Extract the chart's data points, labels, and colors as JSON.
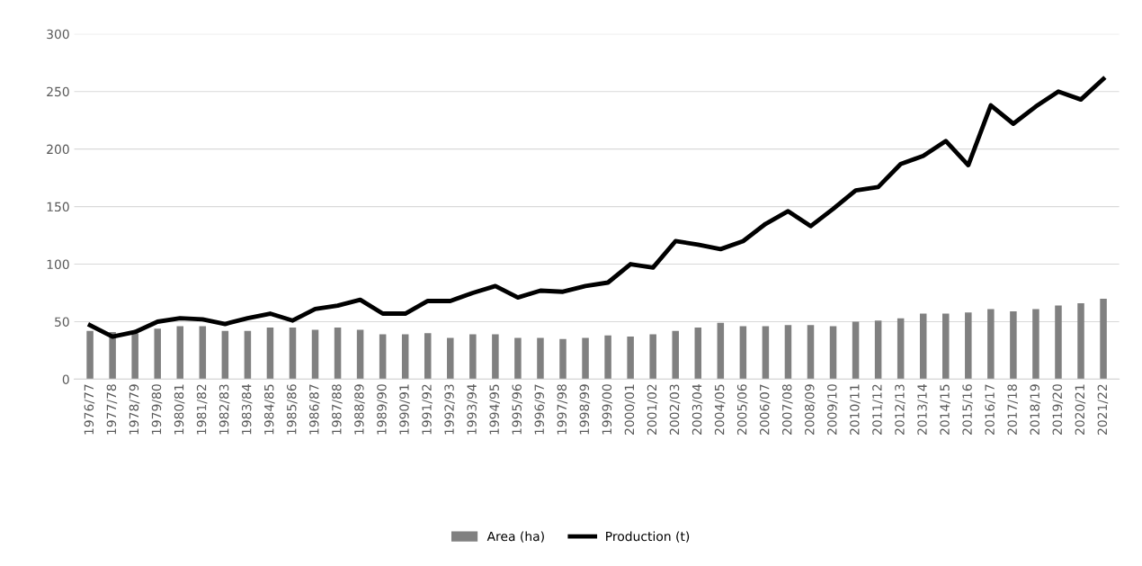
{
  "chart_data": {
    "type": "bar",
    "categories": [
      "1976/77",
      "1977/78",
      "1978/79",
      "1979/80",
      "1980/81",
      "1981/82",
      "1982/83",
      "1983/84",
      "1984/85",
      "1985/86",
      "1986/87",
      "1987/88",
      "1988/89",
      "1989/90",
      "1990/91",
      "1991/92",
      "1992/93",
      "1993/94",
      "1994/95",
      "1995/96",
      "1996/97",
      "1997/98",
      "1998/99",
      "1999/00",
      "2000/01",
      "2001/02",
      "2002/03",
      "2003/04",
      "2004/05",
      "2005/06",
      "2006/07",
      "2007/08",
      "2008/09",
      "2009/10",
      "2010/11",
      "2011/12",
      "2012/13",
      "2013/14",
      "2014/15",
      "2015/16",
      "2016/17",
      "2017/18",
      "2018/19",
      "2019/20",
      "2020/21",
      "2021/22"
    ],
    "series": [
      {
        "name": "Area (ha)",
        "color": "#808080",
        "values": [
          42,
          41,
          40,
          44,
          46,
          46,
          42,
          42,
          45,
          45,
          43,
          45,
          43,
          39,
          39,
          40,
          36,
          39,
          39,
          36,
          36,
          35,
          36,
          38,
          37,
          39,
          42,
          45,
          49,
          46,
          46,
          47,
          47,
          46,
          50,
          51,
          53,
          57,
          57,
          58,
          61,
          59,
          61,
          64,
          66,
          70
        ]
      },
      {
        "name": "Production (t)",
        "type": "line",
        "color": "#000000",
        "values": [
          47,
          37,
          41,
          50,
          53,
          52,
          48,
          53,
          57,
          51,
          61,
          64,
          69,
          57,
          57,
          68,
          68,
          75,
          81,
          71,
          77,
          76,
          81,
          84,
          100,
          97,
          120,
          117,
          113,
          120,
          135,
          146,
          133,
          148,
          164,
          167,
          187,
          194,
          207,
          186,
          238,
          222,
          237,
          250,
          243,
          261
        ]
      }
    ],
    "ylim": [
      0,
      300
    ],
    "yticks": [
      0,
      50,
      100,
      150,
      200,
      250,
      300
    ],
    "grid": "y",
    "legend": "bottom",
    "marker": "none",
    "line_style": "solid"
  }
}
